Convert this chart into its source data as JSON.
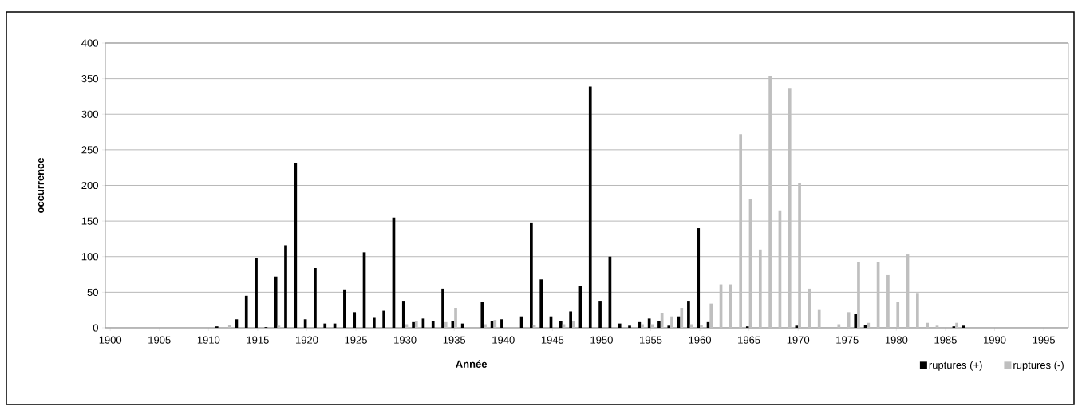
{
  "chart_data": {
    "type": "bar",
    "xlabel": "Année",
    "ylabel": "occurrence",
    "categories": [
      "1900",
      null,
      null,
      null,
      null,
      "1905",
      null,
      null,
      null,
      null,
      "1910",
      null,
      null,
      null,
      null,
      "1915",
      null,
      null,
      null,
      null,
      "1920",
      null,
      null,
      null,
      null,
      "1925",
      null,
      null,
      null,
      null,
      "1930",
      null,
      null,
      null,
      null,
      "1935",
      null,
      null,
      null,
      null,
      "1940",
      null,
      null,
      null,
      null,
      "1945",
      null,
      null,
      null,
      null,
      "1950",
      null,
      null,
      null,
      null,
      "1955",
      null,
      null,
      null,
      null,
      "1960",
      null,
      null,
      null,
      null,
      "1965",
      null,
      null,
      null,
      null,
      "1970",
      null,
      null,
      null,
      null,
      "1975",
      null,
      null,
      null,
      null,
      "1980",
      null,
      null,
      null,
      null,
      "1985",
      null,
      null,
      null,
      null,
      "1990",
      null,
      null,
      null,
      null,
      "1995",
      null,
      null
    ],
    "series": [
      {
        "name": "ruptures (+)",
        "color": "#000000",
        "values": [
          0,
          0,
          0,
          0,
          0,
          0,
          0,
          0,
          0,
          0,
          0,
          2,
          0,
          12,
          45,
          98,
          1,
          72,
          116,
          232,
          12,
          84,
          6,
          6,
          54,
          22,
          106,
          14,
          24,
          155,
          38,
          8,
          13,
          10,
          55,
          9,
          6,
          0,
          36,
          9,
          12,
          0,
          16,
          148,
          68,
          16,
          9,
          23,
          59,
          339,
          38,
          100,
          6,
          3,
          8,
          13,
          9,
          3,
          16,
          38,
          140,
          8,
          0,
          0,
          0,
          2,
          0,
          0,
          0,
          0,
          3,
          0,
          0,
          0,
          0,
          0,
          19,
          4,
          0,
          0,
          0,
          0,
          0,
          0,
          0,
          0,
          2,
          3,
          0,
          0,
          0,
          0,
          0,
          0,
          0,
          0,
          0,
          0
        ]
      },
      {
        "name": "ruptures (-)",
        "color": "#bfbfbf",
        "values": [
          0,
          0,
          0,
          0,
          0,
          0,
          0,
          0,
          0,
          0,
          0,
          0,
          4,
          0,
          0,
          0,
          0,
          3,
          0,
          0,
          0,
          0,
          0,
          0,
          0,
          0,
          0,
          0,
          0,
          0,
          5,
          10,
          0,
          0,
          8,
          28,
          0,
          0,
          5,
          11,
          0,
          0,
          0,
          4,
          0,
          0,
          5,
          10,
          0,
          0,
          0,
          0,
          0,
          0,
          5,
          5,
          21,
          16,
          28,
          5,
          4,
          34,
          61,
          61,
          272,
          181,
          110,
          354,
          165,
          337,
          203,
          55,
          25,
          0,
          5,
          22,
          93,
          7,
          92,
          74,
          36,
          103,
          49,
          7,
          3,
          0,
          7,
          0,
          0,
          0,
          0,
          0,
          0,
          0,
          0,
          0,
          0,
          0
        ]
      }
    ],
    "ylim": [
      0,
      400
    ],
    "yticks": [
      0,
      50,
      100,
      150,
      200,
      250,
      300,
      350,
      400
    ],
    "grid": "y",
    "legend": "bottom right"
  }
}
